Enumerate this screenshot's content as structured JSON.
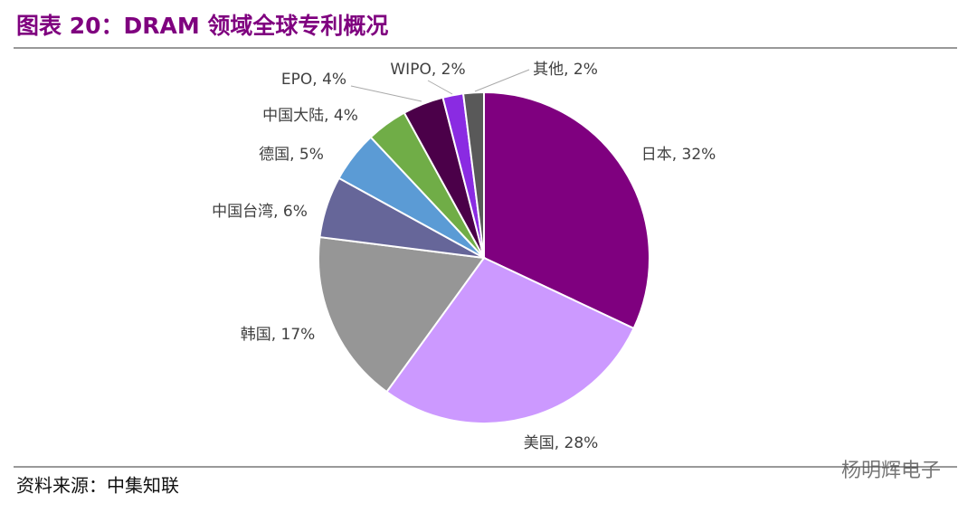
{
  "chart_data": {
    "type": "pie",
    "title": "图表 20：DRAM 领域全球专利概况",
    "values": [
      32,
      28,
      17,
      6,
      5,
      4,
      4,
      2,
      2
    ],
    "value_labels": [
      "日本, 32%",
      "美国, 28%",
      "韩国, 17%",
      "中国台湾, 6%",
      "德国, 5%",
      "中国大陆, 4%",
      "EPO, 4%",
      "WIPO, 2%",
      "其他, 2%"
    ],
    "colors": [
      "#7f007f",
      "#cc99ff",
      "#969696",
      "#666699",
      "#5b9bd5",
      "#70ad47",
      "#4b0049",
      "#8a2be2",
      "#595959"
    ],
    "source": "资料来源：中集知联",
    "watermark": "杨明辉电子"
  }
}
